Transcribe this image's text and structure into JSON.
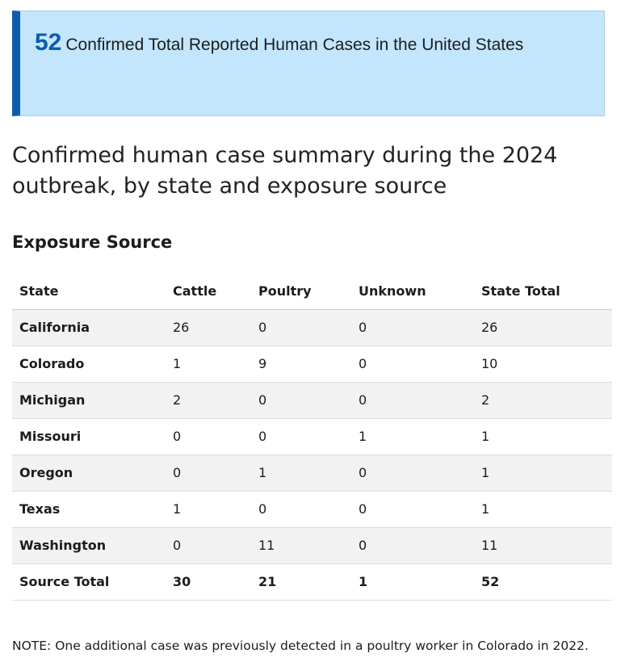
{
  "callout": {
    "count": "52",
    "text": "Confirmed Total Reported Human Cases in the United States"
  },
  "summary_title": "Confirmed human case summary during the 2024 outbreak, by state and exposure source",
  "section_heading": "Exposure Source",
  "table": {
    "headers": [
      "State",
      "Cattle",
      "Poultry",
      "Unknown",
      "State Total"
    ],
    "rows": [
      {
        "state": "California",
        "cattle": "26",
        "poultry": "0",
        "unknown": "0",
        "total": "26"
      },
      {
        "state": "Colorado",
        "cattle": "1",
        "poultry": "9",
        "unknown": "0",
        "total": "10"
      },
      {
        "state": "Michigan",
        "cattle": "2",
        "poultry": "0",
        "unknown": "0",
        "total": "2"
      },
      {
        "state": "Missouri",
        "cattle": "0",
        "poultry": "0",
        "unknown": "1",
        "total": "1"
      },
      {
        "state": "Oregon",
        "cattle": "0",
        "poultry": "1",
        "unknown": "0",
        "total": "1"
      },
      {
        "state": "Texas",
        "cattle": "1",
        "poultry": "0",
        "unknown": "0",
        "total": "1"
      },
      {
        "state": "Washington",
        "cattle": "0",
        "poultry": "11",
        "unknown": "0",
        "total": "11"
      }
    ],
    "footer": {
      "label": "Source Total",
      "cattle": "30",
      "poultry": "21",
      "unknown": "1",
      "total": "52"
    }
  },
  "note": "NOTE: One additional case was previously detected in a poultry worker in Colorado in 2022.",
  "colors": {
    "callout_background": "#c3e6fc",
    "callout_accent": "#0b5cad",
    "striped_row": "#f2f2f2"
  }
}
